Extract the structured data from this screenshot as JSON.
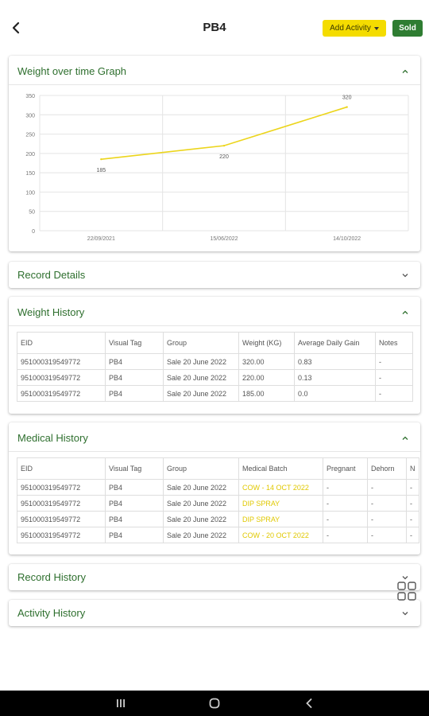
{
  "header": {
    "title": "PB4",
    "add_activity_label": "Add Activity",
    "sold_label": "Sold"
  },
  "colors": {
    "accent_green": "#2e6f2e",
    "sold_green": "#2f7d32",
    "add_yellow": "#f4dc00",
    "line_yellow": "#ecd51c"
  },
  "sections": {
    "weight_graph": {
      "title": "Weight over time Graph",
      "expanded": true
    },
    "record_details": {
      "title": "Record Details",
      "expanded": false
    },
    "weight_history": {
      "title": "Weight History",
      "expanded": true
    },
    "medical_history": {
      "title": "Medical History",
      "expanded": true
    },
    "record_history": {
      "title": "Record History",
      "expanded": false
    },
    "activity_history": {
      "title": "Activity History",
      "expanded": false
    }
  },
  "chart_data": {
    "type": "line",
    "x": [
      "22/09/2021",
      "15/06/2022",
      "14/10/2022"
    ],
    "values": [
      185,
      220,
      320
    ],
    "data_labels": [
      "185",
      "220",
      "320"
    ],
    "ylim": [
      0,
      350
    ],
    "yticks": [
      "0",
      "50",
      "100",
      "150",
      "200",
      "250",
      "300",
      "350"
    ],
    "grid": true,
    "color": "#ecd51c"
  },
  "weight_table": {
    "headers": [
      "EID",
      "Visual Tag",
      "Group",
      "Weight (KG)",
      "Average Daily Gain",
      "Notes"
    ],
    "rows": [
      [
        "951000319549772",
        "PB4",
        "Sale 20 June 2022",
        "320.00",
        "0.83",
        "-"
      ],
      [
        "951000319549772",
        "PB4",
        "Sale 20 June 2022",
        "220.00",
        "0.13",
        "-"
      ],
      [
        "951000319549772",
        "PB4",
        "Sale 20 June 2022",
        "185.00",
        "0.0",
        "-"
      ]
    ]
  },
  "medical_table": {
    "headers": [
      "EID",
      "Visual Tag",
      "Group",
      "Medical Batch",
      "Pregnant",
      "Dehorn",
      "N"
    ],
    "rows": [
      [
        "951000319549772",
        "PB4",
        "Sale 20 June 2022",
        "COW - 14 OCT 2022",
        "-",
        "-",
        "-"
      ],
      [
        "951000319549772",
        "PB4",
        "Sale 20 June 2022",
        "DIP SPRAY",
        "-",
        "-",
        "-"
      ],
      [
        "951000319549772",
        "PB4",
        "Sale 20 June 2022",
        "DIP SPRAY",
        "-",
        "-",
        "-"
      ],
      [
        "951000319549772",
        "PB4",
        "Sale 20 June 2022",
        "COW - 20 OCT 2022",
        "-",
        "-",
        "-"
      ]
    ]
  },
  "icons": {
    "back": "arrow-back-icon",
    "expand": "chevron-down-icon",
    "collapse": "chevron-up-icon",
    "apps": "apps-grid-icon",
    "nav_recents": "recents-icon",
    "nav_home": "home-icon",
    "nav_back": "nav-back-icon"
  }
}
